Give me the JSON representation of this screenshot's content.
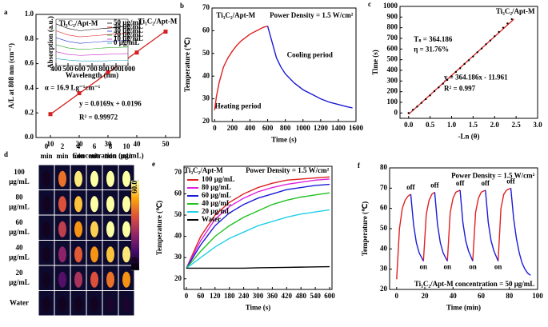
{
  "chart_data": [
    {
      "type": "scatter",
      "panel": "a",
      "xlabel": "Concentration (μg/mL)",
      "ylabel": "A/L at 808 nm (cm⁻¹)",
      "annotations": [
        "Ti₃C₂/Apt-M",
        "α = 16.9 Lg⁻¹cm⁻¹",
        "y = 0.0169x + 0.0196",
        "R² = 0.99972"
      ],
      "points": {
        "x": [
          10,
          20,
          30,
          40,
          50
        ],
        "values": [
          0.19,
          0.36,
          0.53,
          0.69,
          0.86
        ],
        "color": "#d42020"
      },
      "fit": {
        "x": [
          10,
          50
        ],
        "values": [
          0.1886,
          0.8646
        ],
        "color": "#d42020"
      },
      "xlim": [
        5,
        55
      ],
      "xticks": [
        10,
        20,
        30,
        40,
        50
      ],
      "ylim": [
        0,
        1
      ],
      "yticks": [
        {
          "value": 0,
          "label": "0.0"
        },
        0.2,
        0.4,
        0.6,
        0.8,
        {
          "value": 1,
          "label": "1.0"
        }
      ]
    },
    {
      "type": "line",
      "xlabel": "Wavelength (nm)",
      "ylabel": "Absorption (a.u.)",
      "annotations": [
        "Ti₃C₂/Apt-M"
      ],
      "x": [
        400,
        500,
        600,
        700,
        800,
        900,
        1000
      ],
      "series": [
        {
          "name": "50 μg/mL",
          "color": "#000000",
          "values": [
            0.9,
            0.8,
            0.75,
            0.78,
            0.8,
            0.82,
            0.85
          ]
        },
        {
          "name": "40 μg/mL",
          "color": "#e02020",
          "values": [
            0.75,
            0.66,
            0.62,
            0.64,
            0.66,
            0.68,
            0.7
          ]
        },
        {
          "name": "30 μg/mL",
          "color": "#2030d0",
          "values": [
            0.6,
            0.52,
            0.48,
            0.5,
            0.52,
            0.53,
            0.55
          ]
        },
        {
          "name": "20 μg/mL",
          "color": "#20a020",
          "values": [
            0.45,
            0.38,
            0.35,
            0.36,
            0.38,
            0.39,
            0.4
          ]
        },
        {
          "name": "10 μg/mL",
          "color": "#c020c0",
          "values": [
            0.3,
            0.24,
            0.22,
            0.23,
            0.24,
            0.25,
            0.26
          ]
        },
        {
          "name": "0 μg/mL",
          "color": "#20a0c0",
          "values": [
            0.15,
            0.12,
            0.1,
            0.1,
            0.1,
            0.11,
            0.11
          ]
        }
      ],
      "xlim": [
        400,
        1000
      ],
      "xticks": [
        400,
        500,
        600,
        700,
        800,
        900,
        1000
      ],
      "ylim": [
        0,
        1
      ]
    },
    {
      "type": "line",
      "panel": "b",
      "xlabel": "Time (s)",
      "ylabel": "Temperature (℃)",
      "annotations": [
        "Ti₃C₂/Apt-M",
        "Power Density = 1.5 W/cm²",
        "Heating period",
        "Cooling period"
      ],
      "x": [
        0,
        20,
        50,
        100,
        150,
        200,
        250,
        300,
        350,
        400,
        450,
        500,
        550,
        600,
        650,
        700,
        750,
        800,
        900,
        1000,
        1100,
        1200,
        1300,
        1400,
        1500,
        1560
      ],
      "series": [
        {
          "color": "#e02020",
          "values": [
            25,
            31,
            37,
            44,
            48,
            51,
            53.5,
            55.5,
            57,
            58.5,
            59.5,
            60.5,
            61.5,
            62,
            null,
            null,
            null,
            null,
            null,
            null,
            null,
            null,
            null,
            null,
            null,
            null
          ]
        },
        {
          "color": "#1a1ad8",
          "values": [
            null,
            null,
            null,
            null,
            null,
            null,
            null,
            null,
            null,
            null,
            null,
            null,
            null,
            62,
            55,
            48,
            44,
            41,
            37,
            34,
            32,
            30,
            28.5,
            27.5,
            26.5,
            26
          ]
        }
      ],
      "xlim": [
        -30,
        1600
      ],
      "xticks": [
        0,
        200,
        400,
        600,
        800,
        1000,
        1200,
        1400,
        1600
      ],
      "ylim": [
        20,
        70
      ],
      "yticks": [
        20,
        30,
        40,
        50,
        60,
        70
      ]
    },
    {
      "type": "scatter",
      "panel": "c",
      "xlabel": "-Ln (θ)",
      "ylabel": "Time (s)",
      "annotations": [
        "Ti₃C₂/Apt-M",
        "Tₛ = 364.186",
        "η = 31.76%",
        "y = 364.186x - 11.961",
        "R² = 0.997"
      ],
      "points": {
        "x": [
          0,
          0.1,
          0.2,
          0.3,
          0.4,
          0.5,
          0.6,
          0.7,
          0.8,
          0.9,
          1.0,
          1.1,
          1.2,
          1.3,
          1.4,
          1.5,
          1.6,
          1.7,
          1.8,
          1.9,
          2.0,
          2.1,
          2.2,
          2.3,
          2.4
        ],
        "values": [
          0,
          30,
          60,
          95,
          130,
          165,
          205,
          240,
          275,
          310,
          345,
          385,
          420,
          460,
          495,
          530,
          570,
          605,
          645,
          680,
          720,
          760,
          800,
          840,
          880
        ],
        "color": "#000000"
      },
      "fit": {
        "x": [
          0,
          2.45
        ],
        "values": [
          -11.961,
          880.3
        ],
        "color": "#e02020"
      },
      "xlim": [
        -0.2,
        3
      ],
      "xticks": [
        {
          "value": 0,
          "label": "0.0"
        },
        0.5,
        {
          "value": 1,
          "label": "1.0"
        },
        1.5,
        {
          "value": 2,
          "label": "2.0"
        },
        2.5,
        {
          "value": 3,
          "label": "3.0"
        }
      ],
      "ylim": [
        -50,
        1000
      ],
      "yticks": [
        0,
        100,
        200,
        300,
        400,
        500,
        600,
        700,
        800,
        900,
        1000
      ]
    },
    {
      "type": "heatmap",
      "panel": "d",
      "columns": [
        "0",
        "2",
        "4",
        "6",
        "8",
        "10"
      ],
      "column_unit": "min",
      "rows": [
        "100",
        "80",
        "60",
        "40",
        "20",
        "Water"
      ],
      "row_unit": "μg/mL",
      "values": [
        [
          25,
          48,
          58,
          63,
          66,
          68
        ],
        [
          25,
          45,
          55,
          61,
          64,
          66
        ],
        [
          25,
          42,
          51,
          56,
          60,
          63
        ],
        [
          25,
          37,
          46,
          51,
          55,
          58
        ],
        [
          25,
          32,
          40,
          45,
          48,
          51
        ],
        [
          25,
          25,
          25,
          25,
          26,
          26
        ]
      ],
      "zlim": [
        23,
        60
      ],
      "zticks": [
        {
          "value": 60,
          "label": "60.0"
        },
        {
          "value": 23,
          "label": "23.0"
        }
      ]
    },
    {
      "type": "line",
      "panel": "e",
      "xlabel": "Time (s)",
      "ylabel": "Temperature (℃)",
      "annotations": [
        "Ti₃C₂/Apt-M",
        "Power Density = 1.5 W/cm²"
      ],
      "x": [
        0,
        60,
        120,
        180,
        240,
        300,
        360,
        420,
        480,
        540,
        600
      ],
      "series": [
        {
          "name": "100 μg/mL",
          "color": "#e02020",
          "values": [
            25,
            40,
            50,
            56,
            60,
            63,
            65,
            66.5,
            67,
            67.5,
            68
          ]
        },
        {
          "name": "80 μg/mL",
          "color": "#e020e0",
          "values": [
            25,
            38,
            48,
            54,
            58,
            61,
            63,
            64.5,
            65.5,
            66.5,
            67
          ]
        },
        {
          "name": "60 μg/mL",
          "color": "#1a1ad8",
          "values": [
            25,
            36,
            45,
            51,
            55,
            58,
            60,
            62,
            63,
            64,
            64.5
          ]
        },
        {
          "name": "40 μg/mL",
          "color": "#20c020",
          "values": [
            25,
            33,
            40,
            45,
            49,
            52,
            55,
            57,
            58.5,
            59.5,
            60.5
          ]
        },
        {
          "name": "20 μg/mL",
          "color": "#20d0e8",
          "values": [
            25,
            30,
            35,
            39,
            42,
            45,
            47,
            49,
            50.5,
            51.5,
            52.5
          ]
        },
        {
          "name": "Water",
          "color": "#000000",
          "values": [
            25,
            25,
            25,
            25,
            25,
            25.2,
            25.3,
            25.4,
            25.5,
            25.6,
            25.7
          ]
        }
      ],
      "xlim": [
        -10,
        610
      ],
      "xticks": [
        0,
        60,
        120,
        180,
        240,
        300,
        360,
        420,
        480,
        540,
        600
      ],
      "ylim": [
        15,
        73
      ],
      "yticks": [
        20,
        30,
        40,
        50,
        60,
        70
      ]
    },
    {
      "type": "line",
      "panel": "f",
      "xlabel": "Time (min)",
      "ylabel": "Temperature (℃)",
      "annotations": [
        "Power Density = 1.5 W/cm²",
        "Ti₃C₂/Apt-M concentration = 50 μg/mL"
      ],
      "off_label": "off",
      "on_label": "on",
      "x": [
        0,
        2,
        4,
        6,
        8,
        10,
        12,
        14,
        16,
        19,
        21,
        23,
        25,
        27,
        29,
        31,
        33,
        36,
        38,
        40,
        42,
        45,
        47,
        49,
        51,
        54,
        56,
        58,
        60,
        63,
        65,
        67,
        69,
        72,
        74,
        76,
        78,
        81,
        83,
        85,
        87,
        89,
        91,
        93,
        95
      ],
      "series": [
        {
          "color": "#e02020",
          "values": [
            25,
            50,
            60,
            64,
            66,
            67,
            null,
            null,
            null,
            34,
            57,
            64,
            67,
            68,
            null,
            null,
            null,
            34,
            58,
            65,
            68,
            69,
            null,
            null,
            null,
            34,
            58,
            65,
            68,
            69,
            null,
            null,
            null,
            34,
            60,
            67,
            69,
            70,
            null,
            null,
            null,
            null,
            null,
            null,
            null
          ]
        },
        {
          "color": "#1a1ad8",
          "values": [
            null,
            null,
            null,
            null,
            null,
            67,
            52,
            43,
            38,
            34,
            null,
            null,
            null,
            68,
            52,
            43,
            38,
            34,
            null,
            null,
            null,
            69,
            53,
            44,
            39,
            34,
            null,
            null,
            null,
            69,
            53,
            44,
            39,
            34,
            null,
            null,
            null,
            70,
            55,
            45,
            38,
            33,
            30,
            28,
            27
          ]
        }
      ],
      "xlim": [
        -5,
        100
      ],
      "xticks": [
        0,
        20,
        40,
        60,
        80,
        100
      ],
      "ylim": [
        20,
        80
      ],
      "yticks": [
        20,
        30,
        40,
        50,
        60,
        70,
        80
      ]
    }
  ]
}
